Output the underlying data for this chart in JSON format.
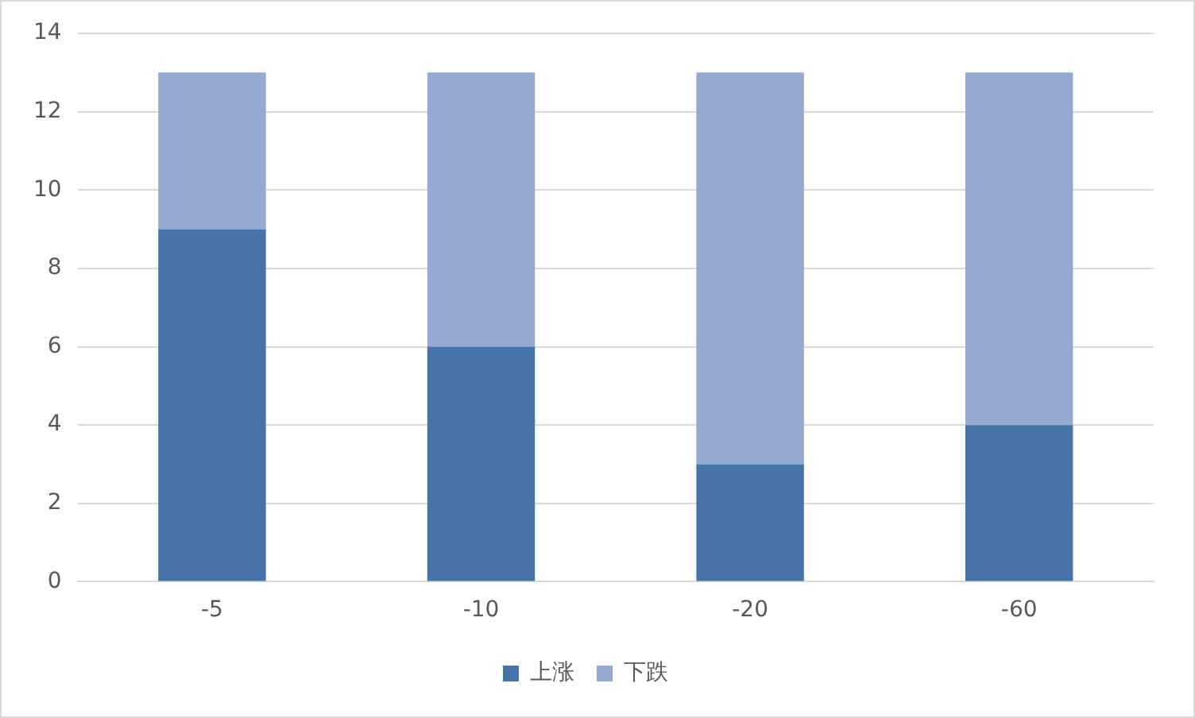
{
  "chart_data": {
    "type": "bar",
    "stacked": true,
    "categories": [
      "-5",
      "-10",
      "-20",
      "-60"
    ],
    "series": [
      {
        "name": "上涨",
        "color": "#4674a8",
        "values": [
          9,
          6,
          3,
          4
        ]
      },
      {
        "name": "下跌",
        "color": "#95aad3",
        "values": [
          4,
          7,
          10,
          9
        ]
      }
    ],
    "ylim": [
      0,
      14
    ],
    "yticks": [
      0,
      2,
      4,
      6,
      8,
      10,
      12,
      14
    ],
    "grid": "y",
    "legend": "bottom"
  }
}
